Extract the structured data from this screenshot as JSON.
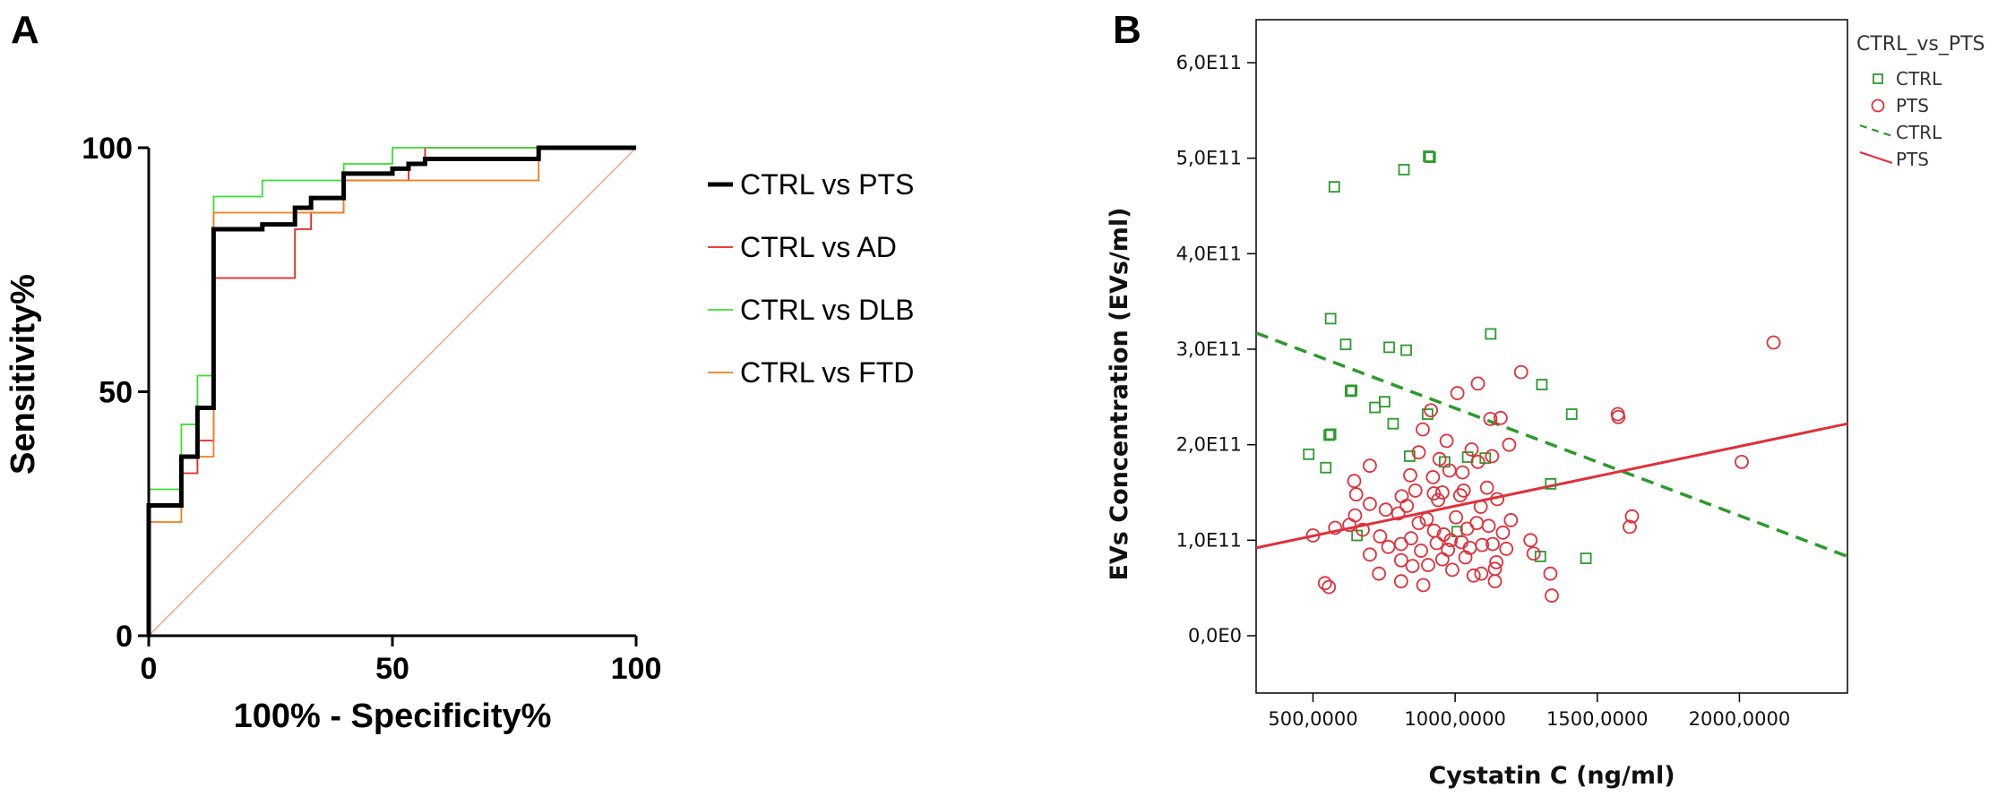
{
  "panels": {
    "a": "A",
    "b": "B"
  },
  "chart_data": [
    {
      "type": "line",
      "title": "",
      "xlabel": "100% - Specificity%",
      "ylabel": "Sensitivity%",
      "xlim": [
        0,
        100
      ],
      "ylim": [
        0,
        100
      ],
      "xticks": [
        "0",
        "50",
        "100"
      ],
      "yticks": [
        "0",
        "50",
        "100"
      ],
      "legend": "right",
      "colors": {
        "reference": "#e8a68e"
      },
      "series": [
        {
          "name": "CTRL vs AD",
          "color": "#e8261f",
          "width": 1.8,
          "x": [
            0,
            0,
            6.7,
            6.7,
            10,
            10,
            13.3,
            13.3,
            16.7,
            16.7,
            30,
            30,
            33.3,
            33.3,
            40,
            40,
            53.3,
            53.3,
            56.7,
            56.7,
            80,
            80,
            100
          ],
          "y": [
            0,
            26.7,
            26.7,
            33.3,
            33.3,
            40,
            40,
            73.3,
            73.3,
            73.3,
            73.3,
            83.3,
            83.3,
            86.7,
            86.7,
            93.3,
            93.3,
            96.7,
            96.7,
            100,
            100,
            100,
            100
          ]
        },
        {
          "name": "CTRL vs DLB",
          "color": "#3ddc32",
          "width": 1.8,
          "x": [
            0,
            0,
            6.7,
            6.7,
            10,
            10,
            13.3,
            13.3,
            23.3,
            23.3,
            40,
            40,
            50,
            50,
            80,
            80,
            100
          ],
          "y": [
            0,
            30,
            30,
            43.3,
            43.3,
            53.3,
            53.3,
            90,
            90,
            93.3,
            93.3,
            96.7,
            96.7,
            100,
            100,
            100,
            100
          ]
        },
        {
          "name": "CTRL vs FTD",
          "color": "#f07d1a",
          "width": 1.8,
          "x": [
            0,
            0,
            6.7,
            6.7,
            13.3,
            13.3,
            30,
            30,
            40,
            40,
            53.3,
            53.3,
            80,
            80,
            100
          ],
          "y": [
            0,
            23.3,
            23.3,
            36.7,
            36.7,
            86.7,
            86.7,
            86.7,
            86.7,
            93.3,
            93.3,
            93.3,
            93.3,
            100,
            100
          ]
        },
        {
          "name": "CTRL vs PTS",
          "color": "#000000",
          "width": 5,
          "x": [
            0,
            0,
            6.7,
            6.7,
            10,
            10,
            13.3,
            13.3,
            23.3,
            23.3,
            30,
            30,
            33.3,
            33.3,
            40,
            40,
            50,
            50,
            53.3,
            53.3,
            56.7,
            56.7,
            80,
            80,
            100
          ],
          "y": [
            0,
            26.7,
            26.7,
            36.7,
            36.7,
            46.7,
            46.7,
            83.3,
            83.3,
            84.3,
            84.3,
            87.7,
            87.7,
            89.7,
            89.7,
            94.7,
            94.7,
            95.7,
            95.7,
            96.7,
            96.7,
            97.7,
            97.7,
            100,
            100
          ]
        }
      ]
    },
    {
      "type": "scatter",
      "title": "",
      "xlabel": "Cystatin C (ng/ml)",
      "ylabel": "EVs Concentration (EVs/ml)",
      "xlim": [
        300,
        2380
      ],
      "ylim": [
        -60000000000.0,
        645000000000.0
      ],
      "xticks": [
        500,
        1000,
        1500,
        2000
      ],
      "xtick_labels": [
        "500,0000",
        "1000,0000",
        "1500,0000",
        "2000,0000"
      ],
      "yticks": [
        0,
        100000000000.0,
        200000000000.0,
        300000000000.0,
        400000000000.0,
        500000000000.0,
        600000000000.0
      ],
      "ytick_labels": [
        "0,0E0",
        "1,0E11",
        "2,0E11",
        "3,0E11",
        "4,0E11",
        "5,0E11",
        "6,0E11"
      ],
      "legend_title": "CTRL_vs_PTS",
      "legend": [
        {
          "label": "CTRL",
          "kind": "square",
          "color": "#2c9a2c"
        },
        {
          "label": "PTS",
          "kind": "circle",
          "color": "#e0303a"
        },
        {
          "label": "CTRL",
          "kind": "dashed",
          "color": "#2c9a2c"
        },
        {
          "label": "PTS",
          "kind": "line",
          "color": "#e0303a"
        }
      ],
      "fit_lines": [
        {
          "group": "CTRL",
          "color": "#2c9a2c",
          "dashed": true,
          "x": [
            300,
            2380
          ],
          "y": [
            317000000000.0,
            83000000000.0
          ]
        },
        {
          "group": "PTS",
          "color": "#e0303a",
          "dashed": false,
          "x": [
            300,
            2380
          ],
          "y": [
            92000000000.0,
            222000000000.0
          ]
        }
      ],
      "series": [
        {
          "name": "CTRL",
          "marker": "square",
          "color": "#2c9a2c",
          "points": [
            [
              575,
              470000000000.0
            ],
            [
              820,
              488000000000.0
            ],
            [
              907,
              502000000000.0
            ],
            [
              912,
              501000000000.0
            ],
            [
              562,
              332000000000.0
            ],
            [
              615,
              305000000000.0
            ],
            [
              768,
              302000000000.0
            ],
            [
              828,
              299000000000.0
            ],
            [
              1125,
              316000000000.0
            ],
            [
              1305,
              263000000000.0
            ],
            [
              632,
              256000000000.0
            ],
            [
              636,
              257000000000.0
            ],
            [
              718,
              239000000000.0
            ],
            [
              752,
              245000000000.0
            ],
            [
              782,
              222000000000.0
            ],
            [
              903,
              232000000000.0
            ],
            [
              1410,
              232000000000.0
            ],
            [
              557,
              210000000000.0
            ],
            [
              562,
              211000000000.0
            ],
            [
              485,
              190000000000.0
            ],
            [
              545,
              176000000000.0
            ],
            [
              840,
              188000000000.0
            ],
            [
              963,
              182000000000.0
            ],
            [
              1044,
              187000000000.0
            ],
            [
              1106,
              186000000000.0
            ],
            [
              1336,
              159000000000.0
            ],
            [
              1007,
              109000000000.0
            ],
            [
              655,
              105000000000.0
            ],
            [
              1300,
              83000000000.0
            ],
            [
              1460,
              81000000000.0
            ]
          ]
        },
        {
          "name": "PTS",
          "marker": "circle",
          "color": "#e0303a",
          "points": [
            [
              2120,
              307000000000.0
            ],
            [
              1232,
              276000000000.0
            ],
            [
              1080,
              264000000000.0
            ],
            [
              1160,
              228000000000.0
            ],
            [
              1124,
              227000000000.0
            ],
            [
              1572,
              232000000000.0
            ],
            [
              1574,
              229000000000.0
            ],
            [
              1190,
              200000000000.0
            ],
            [
              970,
              204000000000.0
            ],
            [
              915,
              236000000000.0
            ],
            [
              886,
              216000000000.0
            ],
            [
              1008,
              254000000000.0
            ],
            [
              872,
              192000000000.0
            ],
            [
              945,
              185000000000.0
            ],
            [
              980,
              173000000000.0
            ],
            [
              1058,
              195000000000.0
            ],
            [
              2008,
              182000000000.0
            ],
            [
              700,
              178000000000.0
            ],
            [
              842,
              168000000000.0
            ],
            [
              922,
              166000000000.0
            ],
            [
              1026,
              171000000000.0
            ],
            [
              1080,
              182000000000.0
            ],
            [
              1130,
              188000000000.0
            ],
            [
              1112,
              155000000000.0
            ],
            [
              645,
              162000000000.0
            ],
            [
              652,
              148000000000.0
            ],
            [
              812,
              146000000000.0
            ],
            [
              860,
              152000000000.0
            ],
            [
              925,
              149000000000.0
            ],
            [
              940,
              142000000000.0
            ],
            [
              955,
              150000000000.0
            ],
            [
              1018,
              147000000000.0
            ],
            [
              1030,
              152000000000.0
            ],
            [
              1090,
              135000000000.0
            ],
            [
              1148,
              143000000000.0
            ],
            [
              1003,
              124000000000.0
            ],
            [
              1168,
              108000000000.0
            ],
            [
              648,
              126000000000.0
            ],
            [
              700,
              138000000000.0
            ],
            [
              756,
              132000000000.0
            ],
            [
              800,
              128000000000.0
            ],
            [
              830,
              136000000000.0
            ],
            [
              872,
              118000000000.0
            ],
            [
              900,
              122000000000.0
            ],
            [
              926,
              110000000000.0
            ],
            [
              960,
              106000000000.0
            ],
            [
              985,
              100000000000.0
            ],
            [
              1042,
              112000000000.0
            ],
            [
              1076,
              118000000000.0
            ],
            [
              1118,
              115000000000.0
            ],
            [
              1196,
              121000000000.0
            ],
            [
              1265,
              100000000000.0
            ],
            [
              1622,
              125000000000.0
            ],
            [
              1614,
              114000000000.0
            ],
            [
              500,
              105000000000.0
            ],
            [
              578,
              113000000000.0
            ],
            [
              628,
              116000000000.0
            ],
            [
              675,
              111000000000.0
            ],
            [
              736,
              104000000000.0
            ],
            [
              765,
              93000000000.0
            ],
            [
              810,
              96000000000.0
            ],
            [
              845,
              102000000000.0
            ],
            [
              880,
              89000000000.0
            ],
            [
              935,
              97000000000.0
            ],
            [
              975,
              90000000000.0
            ],
            [
              1022,
              98000000000.0
            ],
            [
              1052,
              92000000000.0
            ],
            [
              1095,
              95000000000.0
            ],
            [
              1132,
              96000000000.0
            ],
            [
              1180,
              91000000000.0
            ],
            [
              1276,
              86000000000.0
            ],
            [
              700,
              85000000000.0
            ],
            [
              732,
              65000000000.0
            ],
            [
              810,
              79000000000.0
            ],
            [
              850,
              73000000000.0
            ],
            [
              905,
              74000000000.0
            ],
            [
              955,
              80000000000.0
            ],
            [
              990,
              69000000000.0
            ],
            [
              1036,
              82000000000.0
            ],
            [
              1092,
              65000000000.0
            ],
            [
              1140,
              70000000000.0
            ],
            [
              1145,
              77000000000.0
            ],
            [
              1335,
              65000000000.0
            ],
            [
              542,
              55000000000.0
            ],
            [
              556,
              51000000000.0
            ],
            [
              810,
              57000000000.0
            ],
            [
              888,
              53000000000.0
            ],
            [
              1065,
              63000000000.0
            ],
            [
              1140,
              57000000000.0
            ],
            [
              1340,
              42000000000.0
            ]
          ]
        }
      ]
    }
  ]
}
